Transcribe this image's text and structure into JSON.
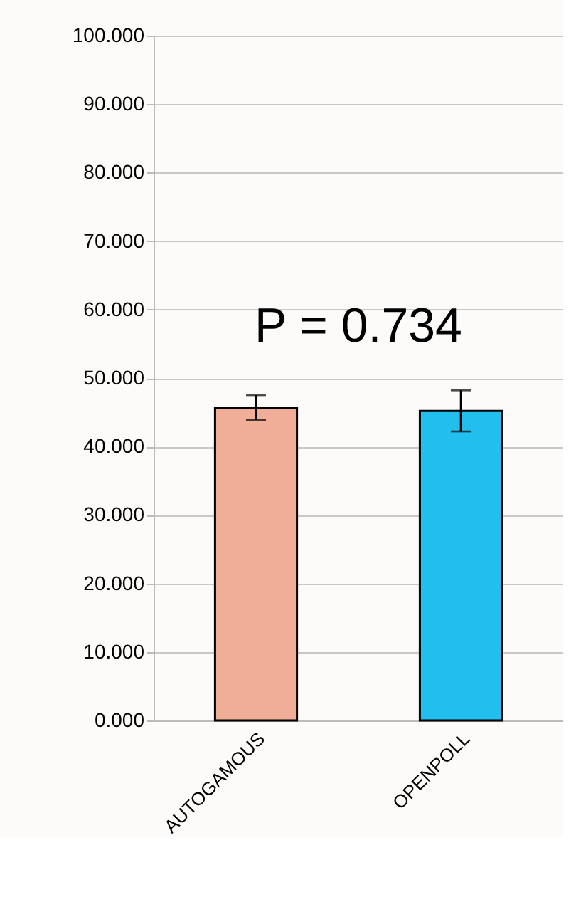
{
  "chart_data": {
    "type": "bar",
    "categories": [
      "AUTOGAMOUS",
      "OPENPOLL"
    ],
    "values": [
      45.6,
      45.2
    ],
    "colors": [
      "#f0ae98",
      "#22bfee"
    ],
    "errors": [
      [
        43.9,
        47.5
      ],
      [
        42.2,
        48.2
      ]
    ],
    "ylim": [
      0,
      100
    ],
    "yticks": [
      {
        "value": 0,
        "label": "0.000"
      },
      {
        "value": 10,
        "label": "10.000"
      },
      {
        "value": 20,
        "label": "20.000"
      },
      {
        "value": 30,
        "label": "30.000"
      },
      {
        "value": 40,
        "label": "40.000"
      },
      {
        "value": 50,
        "label": "50.000"
      },
      {
        "value": 60,
        "label": "60.000"
      },
      {
        "value": 70,
        "label": "70.000"
      },
      {
        "value": 80,
        "label": "80.000"
      },
      {
        "value": 90,
        "label": "90.000"
      },
      {
        "value": 100,
        "label": "100.000"
      }
    ],
    "grid": "y",
    "annotations": [
      "P = 0.734"
    ]
  }
}
